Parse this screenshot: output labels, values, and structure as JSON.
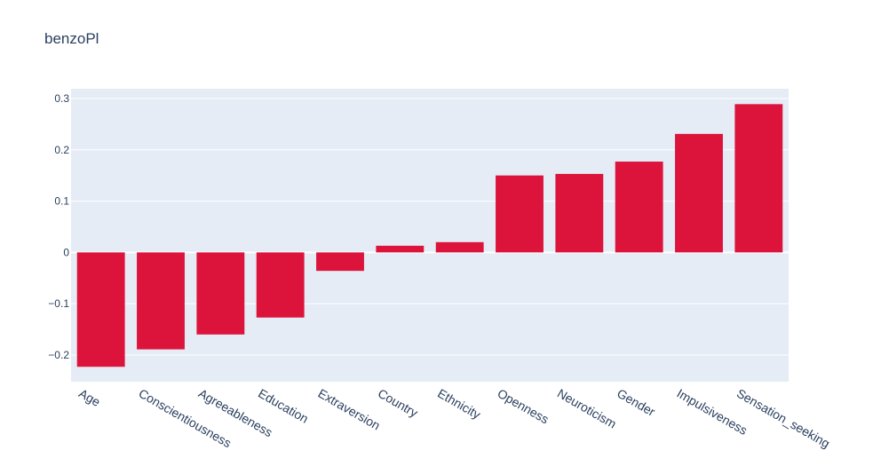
{
  "colors": {
    "bar": "#dc143c",
    "plot_bg": "#e5ecf6",
    "grid": "#ffffff",
    "text": "#2a3f5f"
  },
  "chart_data": {
    "type": "bar",
    "title": "benzoPl",
    "xlabel": "",
    "ylabel": "",
    "categories": [
      "Age",
      "Conscientiousness",
      "Agreeableness",
      "Education",
      "Extraversion",
      "Country",
      "Ethnicity",
      "Openness",
      "Neuroticism",
      "Gender",
      "Impulsiveness",
      "Sensation_seeking"
    ],
    "values": [
      -0.223,
      -0.189,
      -0.16,
      -0.127,
      -0.036,
      0.013,
      0.02,
      0.15,
      0.153,
      0.177,
      0.231,
      0.289
    ],
    "ylim": [
      -0.252,
      0.319
    ],
    "yticks": [
      0.3,
      0.2,
      0.1,
      0,
      -0.1,
      -0.2
    ],
    "ytick_labels": [
      "0.3",
      "0.2",
      "0.1",
      "0",
      "−0.1",
      "−0.2"
    ],
    "grid": true,
    "legend": "none"
  }
}
